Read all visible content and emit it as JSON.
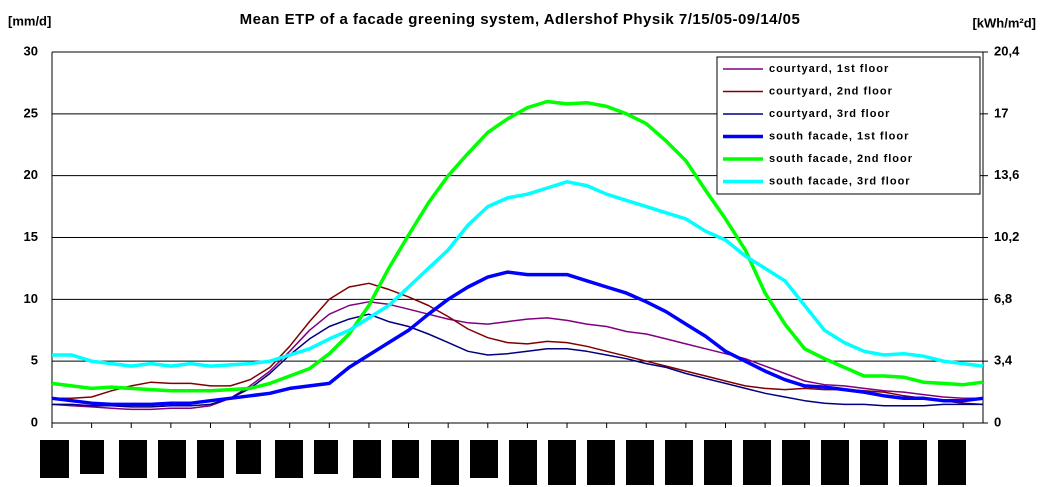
{
  "chart_data": {
    "type": "line",
    "title": "Mean ETP of a facade greening system, Adlershof Physik 7/15/05-09/14/05",
    "ylabel": "[mm/d]",
    "y2label": "[kWh/m²d]",
    "categories": [
      null,
      null,
      null,
      null,
      null,
      null,
      null,
      null,
      null,
      null,
      null,
      null,
      null,
      null,
      null,
      null,
      null,
      null,
      null,
      null,
      null,
      null,
      null,
      null,
      null,
      null,
      null,
      null,
      null,
      null,
      null,
      null,
      null,
      null,
      null,
      null,
      null,
      null,
      null,
      null,
      null,
      null,
      null,
      null,
      null,
      null,
      null,
      null
    ],
    "ylim": [
      0,
      30
    ],
    "yticks": [
      0,
      5,
      10,
      15,
      20,
      25,
      30
    ],
    "y2lim": [
      0,
      20.4
    ],
    "y2ticks": [
      0,
      {
        "value": 3.4,
        "label": "3,4"
      },
      {
        "value": 6.8,
        "label": "6,8"
      },
      {
        "value": 10.2,
        "label": "10,2"
      },
      {
        "value": 13.6,
        "label": "13,6"
      },
      17,
      {
        "value": 20.4,
        "label": "20,4"
      }
    ],
    "grid": true,
    "legend": "top-right",
    "series": [
      {
        "name": "courtyard, 1st floor",
        "color": "#800080",
        "width": 1.5,
        "values": [
          1.5,
          1.4,
          1.3,
          1.2,
          1.1,
          1.1,
          1.2,
          1.2,
          1.4,
          2.0,
          3.0,
          4.2,
          5.8,
          7.5,
          8.8,
          9.5,
          9.8,
          9.6,
          9.2,
          8.8,
          8.4,
          8.1,
          8.0,
          8.2,
          8.4,
          8.5,
          8.3,
          8.0,
          7.8,
          7.4,
          7.2,
          6.8,
          6.4,
          6.0,
          5.6,
          5.2,
          4.6,
          4.0,
          3.4,
          3.1,
          3.0,
          2.8,
          2.6,
          2.5,
          2.3,
          2.1,
          2.0,
          2.0
        ]
      },
      {
        "name": "courtyard, 2nd floor",
        "color": "#800000",
        "width": 1.5,
        "values": [
          2.0,
          2.0,
          2.1,
          2.6,
          3.0,
          3.3,
          3.2,
          3.2,
          3.0,
          3.0,
          3.5,
          4.5,
          6.2,
          8.2,
          10.0,
          11.0,
          11.3,
          10.8,
          10.2,
          9.5,
          8.6,
          7.6,
          6.9,
          6.5,
          6.4,
          6.6,
          6.5,
          6.2,
          5.8,
          5.4,
          5.0,
          4.6,
          4.2,
          3.8,
          3.4,
          3.0,
          2.8,
          2.7,
          2.8,
          2.7,
          2.7,
          2.6,
          2.5,
          2.2,
          2.0,
          1.8,
          1.6,
          1.5
        ]
      },
      {
        "name": "courtyard, 3rd floor",
        "color": "#000080",
        "width": 1.5,
        "values": [
          1.5,
          1.5,
          1.4,
          1.4,
          1.3,
          1.3,
          1.4,
          1.4,
          1.5,
          2.0,
          2.8,
          4.0,
          5.5,
          6.8,
          7.8,
          8.4,
          8.8,
          8.2,
          7.8,
          7.2,
          6.5,
          5.8,
          5.5,
          5.6,
          5.8,
          6.0,
          6.0,
          5.8,
          5.5,
          5.2,
          4.8,
          4.5,
          4.0,
          3.6,
          3.2,
          2.8,
          2.4,
          2.1,
          1.8,
          1.6,
          1.5,
          1.5,
          1.4,
          1.4,
          1.4,
          1.5,
          1.5,
          1.5
        ]
      },
      {
        "name": "south facade, 1st floor",
        "color": "#0000ff",
        "width": 3.5,
        "values": [
          2.0,
          1.8,
          1.6,
          1.5,
          1.5,
          1.5,
          1.6,
          1.6,
          1.8,
          2.0,
          2.2,
          2.4,
          2.8,
          3.0,
          3.2,
          4.5,
          5.5,
          6.5,
          7.5,
          8.8,
          10.0,
          11.0,
          11.8,
          12.2,
          12.0,
          12.0,
          12.0,
          11.5,
          11.0,
          10.5,
          9.8,
          9.0,
          8.0,
          7.0,
          5.8,
          5.0,
          4.2,
          3.5,
          3.0,
          2.9,
          2.7,
          2.5,
          2.2,
          2.0,
          2.0,
          1.8,
          1.8,
          2.0
        ]
      },
      {
        "name": "south facade, 2nd floor",
        "color": "#00ff00",
        "width": 3.5,
        "values": [
          3.2,
          3.0,
          2.8,
          2.9,
          2.8,
          2.7,
          2.6,
          2.6,
          2.6,
          2.7,
          2.8,
          3.2,
          3.8,
          4.4,
          5.6,
          7.2,
          9.5,
          12.5,
          15.2,
          17.8,
          20.0,
          21.8,
          23.5,
          24.6,
          25.5,
          26.0,
          25.8,
          25.9,
          25.6,
          25.0,
          24.2,
          22.8,
          21.2,
          18.8,
          16.5,
          14.0,
          10.5,
          8.0,
          6.0,
          5.2,
          4.5,
          3.8,
          3.8,
          3.7,
          3.3,
          3.2,
          3.1,
          3.3
        ]
      },
      {
        "name": "south facade, 3rd floor",
        "color": "#00ffff",
        "width": 3.5,
        "values": [
          5.5,
          5.5,
          5.0,
          4.8,
          4.6,
          4.8,
          4.6,
          4.8,
          4.6,
          4.7,
          4.8,
          5.0,
          5.5,
          6.0,
          6.8,
          7.5,
          8.5,
          9.5,
          11.0,
          12.5,
          14.0,
          16.0,
          17.5,
          18.2,
          18.5,
          19.0,
          19.5,
          19.2,
          18.5,
          18.0,
          17.5,
          17.0,
          16.5,
          15.5,
          14.8,
          13.5,
          12.5,
          11.5,
          9.5,
          7.5,
          6.5,
          5.8,
          5.5,
          5.6,
          5.4,
          5.0,
          4.8,
          4.6
        ]
      }
    ]
  }
}
